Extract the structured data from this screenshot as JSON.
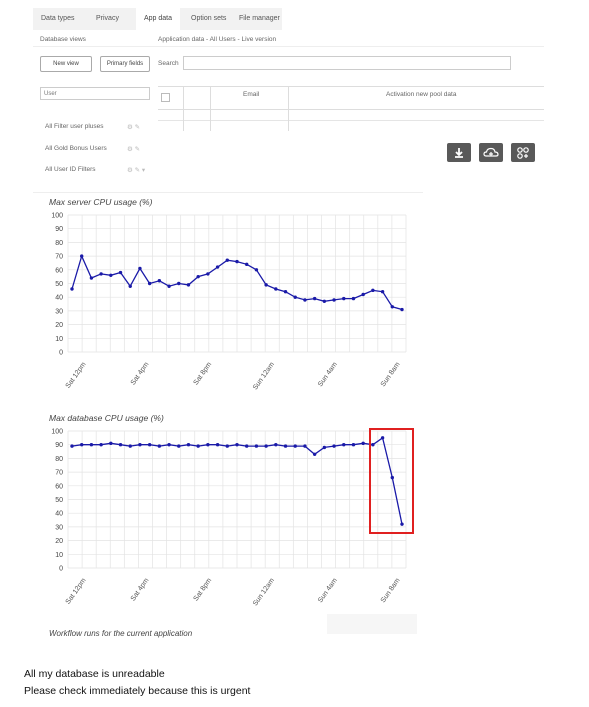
{
  "tabs": [
    "Data types",
    "Privacy",
    "App data",
    "Option sets",
    "File manager"
  ],
  "active_tab": "App data",
  "database_views_label": "Database views",
  "app_data_title": "Application data - All Users - Live version",
  "new_view_label": "New view",
  "primary_fields_label": "Primary fields",
  "search_label": "Search",
  "user_input_value": "User",
  "table_headers": [
    "",
    "Email",
    "Activation new pool data"
  ],
  "views": [
    {
      "label": "All Filter user pluses"
    },
    {
      "label": "All Gold Bonus Users"
    },
    {
      "label": "All User ID Filters"
    }
  ],
  "icons": [
    "download-icon",
    "cloud-upload-icon",
    "workflow-icon"
  ],
  "colors": {
    "line": "#1a1aa8",
    "grid": "#e3e3e3",
    "highlight": "#e02020",
    "icon_bg": "#595959"
  },
  "chart_data": [
    {
      "type": "line",
      "title": "Max server CPU usage (%)",
      "ylim": [
        0,
        100
      ],
      "yticks": [
        100,
        90,
        80,
        70,
        60,
        50,
        40,
        30,
        20,
        10,
        0
      ],
      "xtick_labels": [
        "Sat 12pm",
        "Sat 4pm",
        "Sat 8pm",
        "Sun 12am",
        "Sun 4am",
        "Sun 8am"
      ],
      "values": [
        46,
        70,
        54,
        57,
        56,
        58,
        48,
        61,
        50,
        52,
        48,
        50,
        49,
        55,
        57,
        62,
        67,
        66,
        64,
        60,
        49,
        46,
        44,
        40,
        38,
        39,
        37,
        38,
        39,
        39,
        42,
        45,
        44,
        33,
        31
      ]
    },
    {
      "type": "line",
      "title": "Max database CPU usage (%)",
      "ylim": [
        0,
        100
      ],
      "yticks": [
        100,
        90,
        80,
        70,
        60,
        50,
        40,
        30,
        20,
        10,
        0
      ],
      "xtick_labels": [
        "Sat 12pm",
        "Sat 4pm",
        "Sat 8pm",
        "Sun 12am",
        "Sun 4am",
        "Sun 8am"
      ],
      "values": [
        89,
        90,
        90,
        90,
        91,
        90,
        89,
        90,
        90,
        89,
        90,
        89,
        90,
        89,
        90,
        90,
        89,
        90,
        89,
        89,
        89,
        90,
        89,
        89,
        89,
        83,
        88,
        89,
        90,
        90,
        91,
        90,
        95,
        66,
        32
      ]
    }
  ],
  "workflow_title": "Workflow runs for the current application",
  "message_line1": "All my database is unreadable",
  "message_line2": "Please check immediately because this is urgent"
}
